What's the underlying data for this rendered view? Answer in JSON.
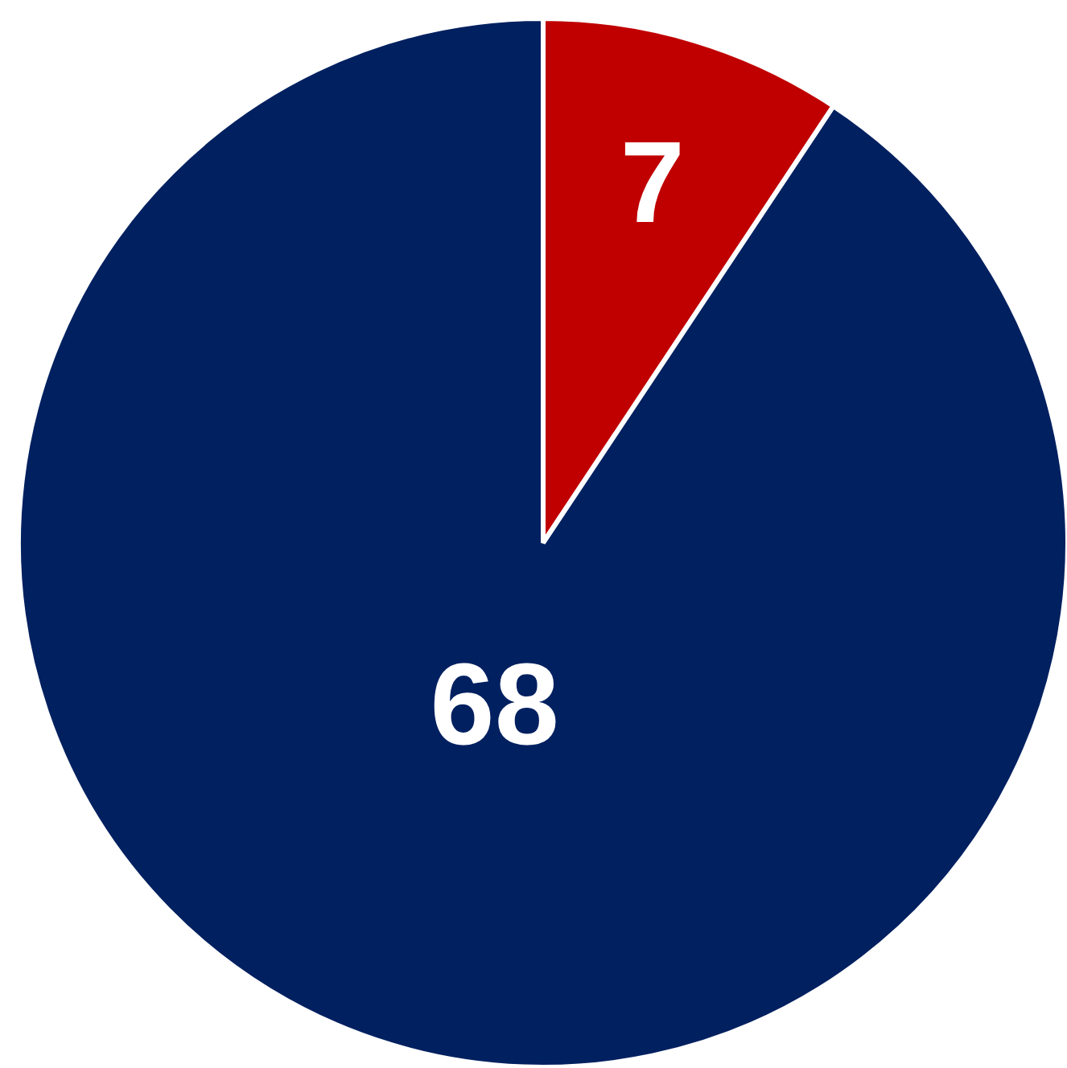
{
  "chart_data": {
    "type": "pie",
    "categories": [
      null,
      null
    ],
    "values": [
      7,
      68
    ],
    "colors": [
      "#c00000",
      "#002060"
    ],
    "data_labels": true
  }
}
